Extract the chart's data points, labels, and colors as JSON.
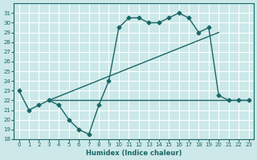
{
  "xlabel": "Humidex (Indice chaleur)",
  "xlim": [
    -0.5,
    23.5
  ],
  "ylim": [
    18,
    32
  ],
  "yticks": [
    18,
    19,
    20,
    21,
    22,
    23,
    24,
    25,
    26,
    27,
    28,
    29,
    30,
    31
  ],
  "xticks": [
    0,
    1,
    2,
    3,
    4,
    5,
    6,
    7,
    8,
    9,
    10,
    11,
    12,
    13,
    14,
    15,
    16,
    17,
    18,
    19,
    20,
    21,
    22,
    23
  ],
  "bg_color": "#cce8e8",
  "line_color": "#1a6666",
  "grid_color": "#ffffff",
  "line1_x": [
    0,
    1,
    2,
    3,
    4,
    5,
    6,
    7,
    8,
    9,
    10,
    11,
    12,
    13,
    14,
    15,
    16,
    17,
    18,
    19,
    20,
    21,
    22,
    23
  ],
  "line1_y": [
    23,
    21,
    21.5,
    22,
    21.5,
    20,
    19,
    18.5,
    21.5,
    24,
    29.5,
    30.5,
    30.5,
    30,
    30,
    30.5,
    31,
    30.5,
    29,
    29.5,
    22.5,
    22,
    22,
    22
  ],
  "line2_x": [
    3,
    23
  ],
  "line2_y": [
    22,
    22
  ],
  "line3_x": [
    3,
    20
  ],
  "line3_y": [
    22,
    29
  ]
}
